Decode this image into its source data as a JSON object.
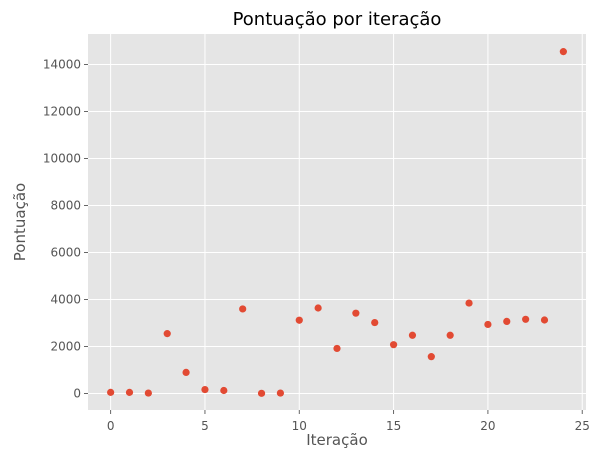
{
  "chart_data": {
    "type": "scatter",
    "title": "Pontuação por iteração",
    "xlabel": "Iteração",
    "ylabel": "Pontuação",
    "xlim": [
      -1.2,
      25.2
    ],
    "ylim": [
      -700,
      15300
    ],
    "xticks": [
      0,
      5,
      10,
      15,
      20,
      25
    ],
    "yticks": [
      0,
      2000,
      4000,
      6000,
      8000,
      10000,
      12000,
      14000
    ],
    "grid": true,
    "style": "ggplot",
    "colors": {
      "background": "#e5e5e5",
      "grid": "#ffffff",
      "marker": "#e24a33"
    },
    "series": [
      {
        "x": [
          0,
          1,
          2,
          3,
          4,
          5,
          6,
          7,
          8,
          9,
          10,
          11,
          12,
          13,
          14,
          15,
          16,
          17,
          18,
          19,
          20,
          21,
          22,
          23,
          24
        ],
        "y": [
          50,
          50,
          20,
          2550,
          900,
          170,
          130,
          3600,
          10,
          20,
          3120,
          3640,
          1920,
          3420,
          3020,
          2080,
          2480,
          1570,
          2480,
          3850,
          2940,
          3070,
          3160,
          3130,
          14550
        ]
      }
    ]
  }
}
